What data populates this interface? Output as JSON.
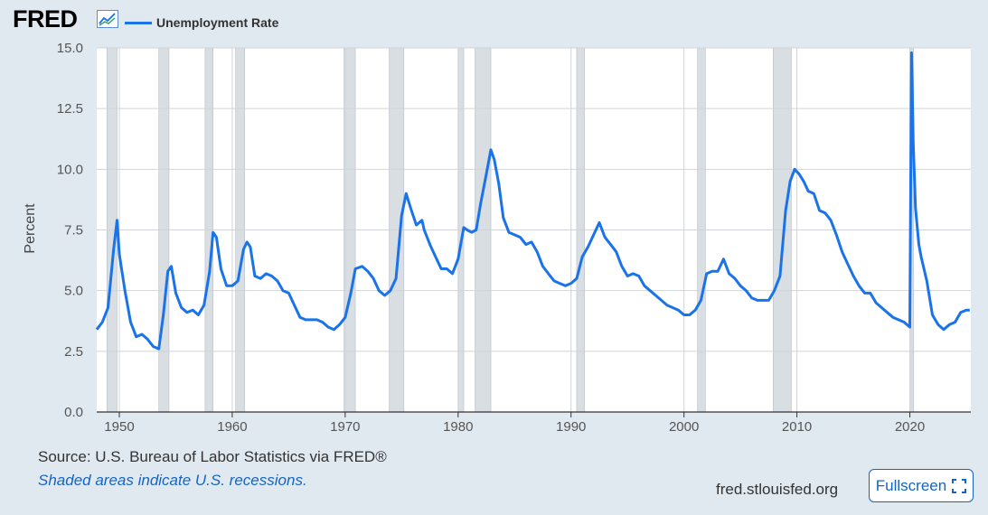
{
  "header": {
    "logo": "FRED",
    "legend_label": "Unemployment Rate",
    "series_color": "#1a73e8"
  },
  "footer": {
    "source": "Source: U.S. Bureau of Labor Statistics via FRED®",
    "note": "Shaded areas indicate U.S. recessions.",
    "site": "fred.stlouisfed.org",
    "fullscreen_label": "Fullscreen",
    "fullscreen_icon": "expand-icon"
  },
  "chart_data": {
    "type": "line",
    "title": "",
    "xlabel": "",
    "ylabel": "Percent",
    "ylim": [
      0,
      15
    ],
    "xlim": [
      1948.0,
      2025.4
    ],
    "yticks": [
      "0.0",
      "2.5",
      "5.0",
      "7.5",
      "10.0",
      "12.5",
      "15.0"
    ],
    "xticks": [
      "1950",
      "1960",
      "1970",
      "1980",
      "1990",
      "2000",
      "2010",
      "2020"
    ],
    "grid": true,
    "legend_position": "top-left",
    "recessions": [
      [
        1948.9,
        1949.8
      ],
      [
        1953.5,
        1954.4
      ],
      [
        1957.6,
        1958.3
      ],
      [
        1960.3,
        1961.1
      ],
      [
        1969.9,
        1970.9
      ],
      [
        1973.9,
        1975.2
      ],
      [
        1980.0,
        1980.5
      ],
      [
        1981.5,
        1982.9
      ],
      [
        1990.5,
        1991.2
      ],
      [
        2001.2,
        2001.9
      ],
      [
        2007.9,
        2009.5
      ],
      [
        2020.1,
        2020.3
      ]
    ],
    "series": [
      {
        "name": "Unemployment Rate",
        "x": [
          1948.0,
          1948.5,
          1949.0,
          1949.5,
          1949.8,
          1950.0,
          1950.5,
          1951.0,
          1951.5,
          1952.0,
          1952.5,
          1953.0,
          1953.5,
          1953.9,
          1954.3,
          1954.6,
          1955.0,
          1955.5,
          1956.0,
          1956.5,
          1957.0,
          1957.5,
          1958.0,
          1958.3,
          1958.6,
          1959.0,
          1959.5,
          1960.0,
          1960.5,
          1961.0,
          1961.3,
          1961.6,
          1962.0,
          1962.5,
          1963.0,
          1963.5,
          1964.0,
          1964.5,
          1965.0,
          1965.5,
          1966.0,
          1966.5,
          1967.0,
          1967.5,
          1968.0,
          1968.5,
          1969.0,
          1969.5,
          1970.0,
          1970.5,
          1970.9,
          1971.5,
          1972.0,
          1972.5,
          1973.0,
          1973.5,
          1974.0,
          1974.5,
          1975.0,
          1975.4,
          1975.8,
          1976.3,
          1976.8,
          1977.0,
          1977.5,
          1978.0,
          1978.5,
          1979.0,
          1979.5,
          1980.0,
          1980.5,
          1980.8,
          1981.2,
          1981.6,
          1982.0,
          1982.5,
          1982.9,
          1983.2,
          1983.6,
          1984.0,
          1984.5,
          1985.0,
          1985.5,
          1986.0,
          1986.5,
          1987.0,
          1987.5,
          1988.0,
          1988.5,
          1989.0,
          1989.5,
          1990.0,
          1990.5,
          1991.0,
          1991.5,
          1992.0,
          1992.5,
          1993.0,
          1993.5,
          1994.0,
          1994.5,
          1995.0,
          1995.5,
          1996.0,
          1996.5,
          1997.0,
          1997.5,
          1998.0,
          1998.5,
          1999.0,
          1999.5,
          2000.0,
          2000.5,
          2001.0,
          2001.5,
          2002.0,
          2002.5,
          2003.0,
          2003.5,
          2004.0,
          2004.5,
          2005.0,
          2005.5,
          2006.0,
          2006.5,
          2007.0,
          2007.5,
          2008.0,
          2008.5,
          2009.0,
          2009.4,
          2009.8,
          2010.2,
          2010.6,
          2011.0,
          2011.5,
          2012.0,
          2012.5,
          2013.0,
          2013.5,
          2014.0,
          2014.5,
          2015.0,
          2015.5,
          2016.0,
          2016.5,
          2017.0,
          2017.5,
          2018.0,
          2018.5,
          2019.0,
          2019.5,
          2020.0,
          2020.15,
          2020.3,
          2020.5,
          2020.8,
          2021.0,
          2021.5,
          2022.0,
          2022.5,
          2023.0,
          2023.5,
          2024.0,
          2024.5,
          2025.0,
          2025.3
        ],
        "values": [
          3.4,
          3.7,
          4.3,
          6.7,
          7.9,
          6.5,
          5.0,
          3.7,
          3.1,
          3.2,
          3.0,
          2.7,
          2.6,
          4.0,
          5.8,
          6.0,
          4.9,
          4.3,
          4.1,
          4.2,
          4.0,
          4.4,
          5.8,
          7.4,
          7.2,
          5.9,
          5.2,
          5.2,
          5.4,
          6.7,
          7.0,
          6.8,
          5.6,
          5.5,
          5.7,
          5.6,
          5.4,
          5.0,
          4.9,
          4.4,
          3.9,
          3.8,
          3.8,
          3.8,
          3.7,
          3.5,
          3.4,
          3.6,
          3.9,
          4.9,
          5.9,
          6.0,
          5.8,
          5.5,
          5.0,
          4.8,
          5.0,
          5.5,
          8.1,
          9.0,
          8.4,
          7.7,
          7.9,
          7.5,
          6.9,
          6.4,
          5.9,
          5.9,
          5.7,
          6.3,
          7.6,
          7.5,
          7.4,
          7.5,
          8.6,
          9.8,
          10.8,
          10.4,
          9.4,
          8.0,
          7.4,
          7.3,
          7.2,
          6.9,
          7.0,
          6.6,
          6.0,
          5.7,
          5.4,
          5.3,
          5.2,
          5.3,
          5.5,
          6.4,
          6.8,
          7.3,
          7.8,
          7.2,
          6.9,
          6.6,
          6.0,
          5.6,
          5.7,
          5.6,
          5.2,
          5.0,
          4.8,
          4.6,
          4.4,
          4.3,
          4.2,
          4.0,
          4.0,
          4.2,
          4.6,
          5.7,
          5.8,
          5.8,
          6.3,
          5.7,
          5.5,
          5.2,
          5.0,
          4.7,
          4.6,
          4.6,
          4.6,
          5.0,
          5.6,
          8.3,
          9.5,
          10.0,
          9.8,
          9.5,
          9.1,
          9.0,
          8.3,
          8.2,
          7.9,
          7.3,
          6.6,
          6.1,
          5.6,
          5.2,
          4.9,
          4.9,
          4.5,
          4.3,
          4.1,
          3.9,
          3.8,
          3.7,
          3.5,
          14.8,
          11.1,
          8.4,
          6.9,
          6.4,
          5.4,
          4.0,
          3.6,
          3.4,
          3.6,
          3.7,
          4.1,
          4.2,
          4.2
        ]
      }
    ]
  }
}
